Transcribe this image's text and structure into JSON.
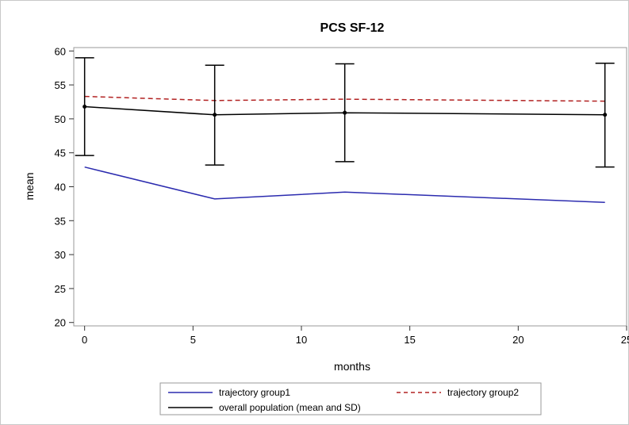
{
  "chart_data": {
    "type": "line",
    "title": "PCS SF-12",
    "xlabel": "months",
    "ylabel": "mean",
    "xlim": [
      -0.5,
      25
    ],
    "ylim": [
      19.5,
      60.5
    ],
    "xticks": [
      0,
      5,
      10,
      15,
      20,
      25
    ],
    "yticks": [
      20,
      25,
      30,
      35,
      40,
      45,
      50,
      55,
      60
    ],
    "grid": false,
    "legend_position": "bottom",
    "series": [
      {
        "name": "trajectory group1",
        "color": "#2b2baf",
        "style": "solid",
        "x": [
          0,
          6,
          12,
          24
        ],
        "y": [
          42.9,
          38.2,
          39.2,
          37.7
        ]
      },
      {
        "name": "trajectory group2",
        "color": "#b22222",
        "style": "dashed",
        "x": [
          0,
          6,
          12,
          24
        ],
        "y": [
          53.3,
          52.7,
          52.9,
          52.6
        ]
      },
      {
        "name": "overall population (mean and SD)",
        "color": "#000000",
        "style": "solid",
        "x": [
          0,
          6,
          12,
          24
        ],
        "y": [
          51.8,
          50.6,
          50.9,
          50.6
        ],
        "errorbars": [
          [
            44.6,
            59.0
          ],
          [
            43.2,
            57.9
          ],
          [
            43.7,
            58.1
          ],
          [
            42.9,
            58.2
          ]
        ]
      }
    ]
  }
}
